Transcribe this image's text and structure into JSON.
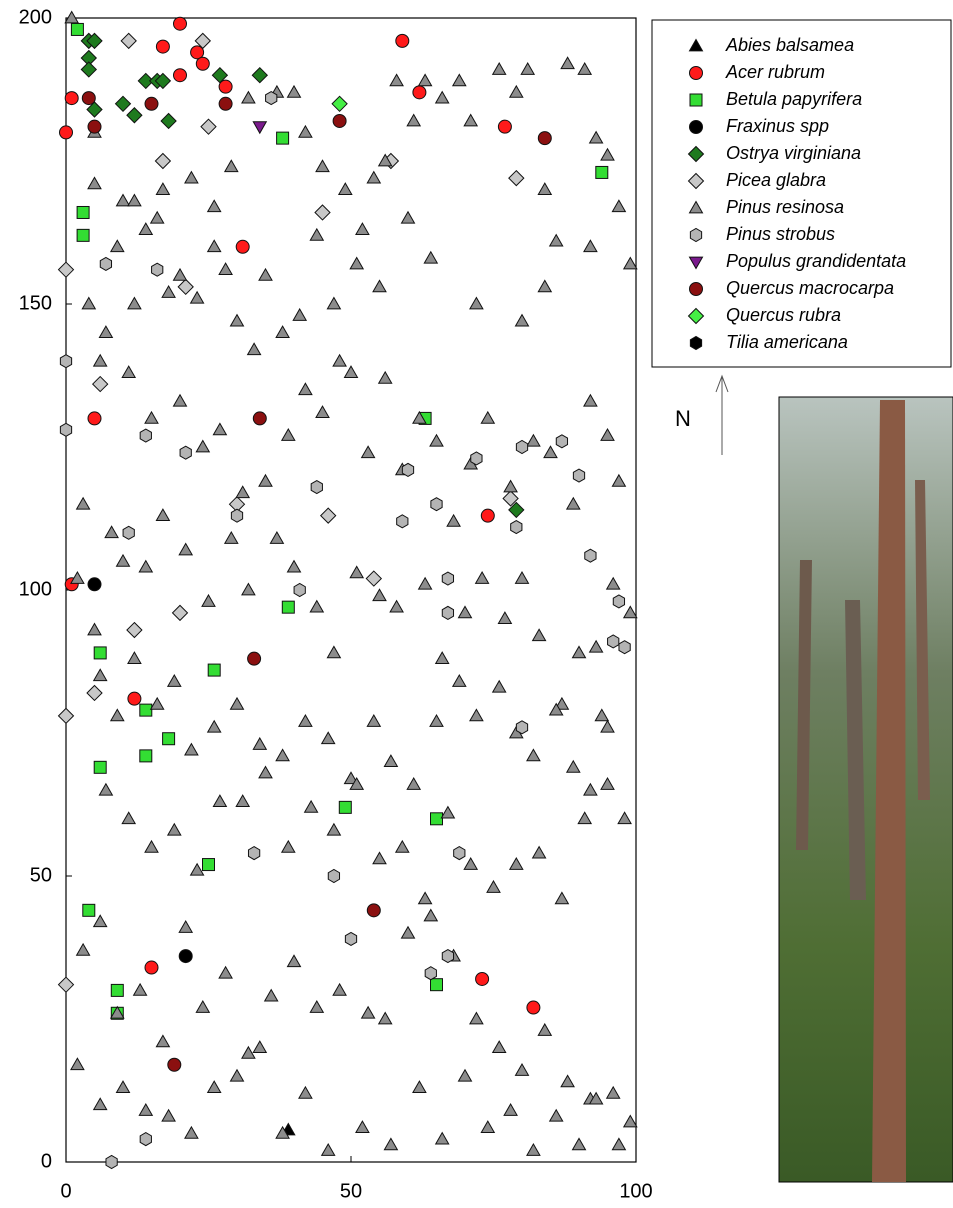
{
  "chart_data": {
    "type": "scatter",
    "annotation": "N",
    "xlim": [
      0,
      100
    ],
    "ylim": [
      0,
      200
    ],
    "xticks": [
      0,
      50,
      100
    ],
    "yticks": [
      0,
      50,
      100,
      150,
      200
    ],
    "series": [
      {
        "name": "Abies balsamea",
        "color": "#000000",
        "marker": "triangle",
        "x": [
          39
        ],
        "y": [
          5.6
        ]
      },
      {
        "name": "Acer rubrum",
        "color": "#ff1a1a",
        "marker": "circle",
        "x": [
          0,
          1,
          20,
          17,
          23,
          24,
          20,
          28,
          59,
          62,
          77,
          31,
          5,
          74,
          1,
          12,
          15,
          73,
          82
        ],
        "y": [
          180,
          186,
          199,
          195,
          194,
          192,
          190,
          188,
          196,
          187,
          181,
          160,
          130,
          113,
          101,
          81,
          34,
          32,
          27
        ]
      },
      {
        "name": "Betula papyrifera",
        "color": "#33dd33",
        "marker": "square",
        "x": [
          2,
          38,
          94,
          3,
          3,
          63,
          39,
          6,
          26,
          14,
          18,
          14,
          6,
          49,
          65,
          25,
          4,
          65,
          9,
          9
        ],
        "y": [
          198,
          179,
          173,
          166,
          162,
          130,
          97,
          89,
          86,
          79,
          74,
          71,
          69,
          62,
          60,
          52,
          44,
          31,
          30,
          26
        ]
      },
      {
        "name": "Fraxinus spp",
        "color": "#000000",
        "marker": "circle",
        "x": [
          5,
          21
        ],
        "y": [
          101,
          36
        ]
      },
      {
        "name": "Ostrya virginiana",
        "color": "#1e7a1e",
        "marker": "diamond",
        "x": [
          4,
          5,
          4,
          4,
          5,
          10,
          12,
          14,
          16,
          17,
          18,
          27,
          34,
          79
        ],
        "y": [
          196,
          196,
          193,
          191,
          184,
          185,
          183,
          189,
          189,
          189,
          182,
          190,
          190,
          114
        ]
      },
      {
        "name": "Picea glabra",
        "color": "#c8c8c8",
        "marker": "diamond",
        "x": [
          11,
          24,
          25,
          17,
          0,
          21,
          6,
          0,
          0,
          5,
          12,
          20,
          45,
          57,
          79,
          46,
          30,
          54,
          78
        ],
        "y": [
          196,
          196,
          181,
          175,
          156,
          153,
          136,
          78,
          31,
          82,
          93,
          96,
          166,
          175,
          172,
          113,
          115,
          102,
          116
        ]
      },
      {
        "name": "Pinus resinosa",
        "color": "#8c8c8c",
        "marker": "triangle",
        "x": [
          1,
          5,
          5,
          10,
          12,
          16,
          17,
          22,
          26,
          29,
          32,
          37,
          40,
          42,
          45,
          49,
          52,
          54,
          56,
          58,
          61,
          63,
          66,
          69,
          71,
          76,
          79,
          81,
          84,
          88,
          91,
          93,
          95,
          97,
          99,
          92,
          86,
          84,
          80,
          72,
          64,
          60,
          55,
          51,
          47,
          44,
          41,
          38,
          35,
          33,
          30,
          28,
          26,
          23,
          20,
          18,
          14,
          12,
          9,
          7,
          4,
          3,
          6,
          11,
          15,
          20,
          24,
          27,
          31,
          35,
          39,
          42,
          45,
          48,
          50,
          53,
          56,
          59,
          62,
          65,
          68,
          71,
          74,
          78,
          82,
          85,
          89,
          92,
          95,
          97,
          2,
          5,
          8,
          10,
          14,
          17,
          21,
          25,
          29,
          32,
          37,
          40,
          44,
          47,
          51,
          55,
          58,
          63,
          66,
          70,
          73,
          77,
          80,
          83,
          87,
          90,
          93,
          96,
          99,
          94,
          6,
          9,
          12,
          16,
          19,
          22,
          26,
          30,
          34,
          38,
          42,
          46,
          50,
          54,
          57,
          61,
          65,
          69,
          72,
          76,
          79,
          82,
          86,
          89,
          92,
          95,
          98,
          7,
          11,
          15,
          19,
          23,
          27,
          31,
          35,
          39,
          43,
          47,
          51,
          55,
          59,
          63,
          67,
          71,
          75,
          79,
          83,
          87,
          91,
          95,
          3,
          6,
          9,
          13,
          17,
          21,
          24,
          28,
          32,
          36,
          40,
          44,
          48,
          53,
          56,
          60,
          64,
          68,
          72,
          76,
          80,
          84,
          88,
          92,
          96,
          99,
          2,
          6,
          10,
          14,
          18,
          22,
          26,
          30,
          34,
          38,
          42,
          46,
          52,
          57,
          62,
          66,
          70,
          74,
          78,
          82,
          86,
          90,
          93,
          97
        ],
        "y": [
          200,
          180,
          171,
          168,
          168,
          165,
          170,
          172,
          167,
          174,
          186,
          187,
          187,
          180,
          174,
          170,
          163,
          172,
          175,
          189,
          182,
          189,
          186,
          189,
          182,
          191,
          187,
          191,
          170,
          192,
          191,
          179,
          176,
          167,
          157,
          160,
          161,
          153,
          147,
          150,
          158,
          165,
          153,
          157,
          150,
          162,
          148,
          145,
          155,
          142,
          147,
          156,
          160,
          151,
          155,
          152,
          163,
          150,
          160,
          145,
          150,
          115,
          140,
          138,
          130,
          133,
          125,
          128,
          117,
          119,
          127,
          135,
          131,
          140,
          138,
          124,
          137,
          121,
          130,
          126,
          112,
          122,
          130,
          118,
          126,
          124,
          115,
          133,
          127,
          119,
          102,
          93,
          110,
          105,
          104,
          113,
          107,
          98,
          109,
          100,
          109,
          104,
          97,
          89,
          103,
          99,
          97,
          101,
          88,
          96,
          102,
          95,
          102,
          92,
          80,
          89,
          90,
          101,
          96,
          78,
          85,
          78,
          88,
          80,
          84,
          72,
          76,
          80,
          73,
          71,
          77,
          74,
          67,
          77,
          70,
          66,
          77,
          84,
          78,
          83,
          75,
          71,
          79,
          69,
          65,
          76,
          60,
          65,
          60,
          55,
          58,
          51,
          63,
          63,
          68,
          55,
          62,
          58,
          66,
          53,
          55,
          46,
          61,
          52,
          48,
          52,
          54,
          46,
          60,
          66,
          37,
          42,
          26,
          30,
          21,
          41,
          27,
          33,
          19,
          29,
          35,
          27,
          30,
          26,
          25,
          40,
          43,
          36,
          25,
          20,
          16,
          23,
          14,
          11,
          12,
          7,
          17,
          10,
          13,
          9,
          8,
          5,
          13,
          15,
          20,
          5,
          12,
          2,
          6,
          3,
          13,
          4,
          15,
          6,
          9,
          2,
          8,
          3,
          11,
          3
        ]
      },
      {
        "name": "Pinus strobus",
        "color": "#b4b4b4",
        "marker": "hexagon",
        "x": [
          0,
          0,
          7,
          16,
          11,
          14,
          21,
          30,
          36,
          41,
          44,
          60,
          65,
          72,
          80,
          87,
          90,
          92,
          96,
          98,
          97,
          79,
          67,
          67,
          47,
          69,
          33,
          64,
          67,
          8,
          14,
          50,
          80,
          59
        ],
        "y": [
          140,
          128,
          157,
          156,
          110,
          127,
          124,
          113,
          186,
          100,
          118,
          121,
          115,
          123,
          125,
          126,
          120,
          106,
          91,
          90,
          98,
          111,
          102,
          96,
          50,
          54,
          54,
          33,
          36,
          0,
          4,
          39,
          76,
          112
        ]
      },
      {
        "name": "Populus grandidentata",
        "color": "#7a1a8c",
        "marker": "triangle-down",
        "x": [
          34
        ],
        "y": [
          181
        ]
      },
      {
        "name": "Quercus macrocarpa",
        "color": "#8b1010",
        "marker": "circle",
        "x": [
          4,
          5,
          15,
          28,
          48,
          84,
          34,
          33,
          54,
          19
        ],
        "y": [
          186,
          181,
          185,
          185,
          182,
          179,
          130,
          88,
          44,
          17
        ]
      },
      {
        "name": "Quercus rubra",
        "color": "#44ee44",
        "marker": "diamond",
        "x": [
          48
        ],
        "y": [
          185
        ]
      },
      {
        "name": "Tilia americana",
        "color": "#000000",
        "marker": "hexagon",
        "x": [],
        "y": []
      }
    ]
  }
}
